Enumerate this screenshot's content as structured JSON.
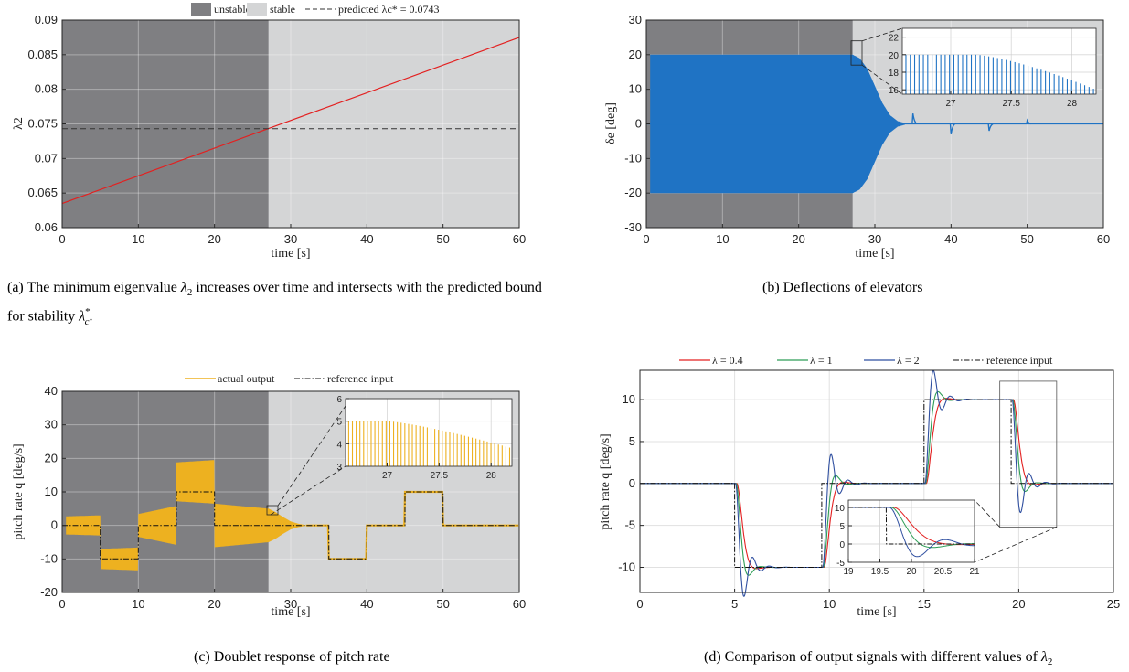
{
  "captions": {
    "a": "(a) The minimum eigenvalue λ2 increases over time and intersects with the predicted bound for stability λc*.",
    "b": "(b) Deflections of elevators",
    "c": "(c) Doublet response of pitch rate",
    "d": "(d) Comparison of output signals with different values of λ2"
  },
  "colors": {
    "unstable": "#7f7f82",
    "stable": "#d4d5d6",
    "red": "#e32020",
    "blue_fill": "#1f73c4",
    "orange": "#edb120",
    "green": "#2f9e57",
    "navy": "#2f4fa0"
  },
  "chart_data": [
    {
      "id": "a",
      "type": "line",
      "xlabel": "time [s]",
      "ylabel": "λ2",
      "xlim": [
        0,
        60
      ],
      "ylim": [
        0.06,
        0.09
      ],
      "xticks": [
        "0",
        "10",
        "20",
        "30",
        "40",
        "50",
        "60"
      ],
      "yticks": [
        "0.06",
        "0.065",
        "0.07",
        "0.075",
        "0.08",
        "0.085",
        "0.09"
      ],
      "regions": [
        {
          "name": "unstable",
          "x": [
            0,
            27.1
          ]
        },
        {
          "name": "stable",
          "x": [
            27.1,
            60
          ]
        }
      ],
      "series": [
        {
          "name": "λ2",
          "x": [
            0,
            60
          ],
          "y": [
            0.0635,
            0.0875
          ]
        },
        {
          "name": "predicted λc* = 0.0743",
          "x": [
            0,
            60
          ],
          "y": [
            0.0743,
            0.0743
          ],
          "style": "dashed"
        }
      ],
      "legend": [
        "unstable",
        "stable",
        "predicted λc* = 0.0743"
      ],
      "legend_position": "top"
    },
    {
      "id": "b",
      "type": "area",
      "xlabel": "time [s]",
      "ylabel": "δe [deg]",
      "xlim": [
        0,
        60
      ],
      "ylim": [
        -30,
        30
      ],
      "xticks": [
        "0",
        "10",
        "20",
        "30",
        "40",
        "50",
        "60"
      ],
      "yticks": [
        "-30",
        "-20",
        "-10",
        "0",
        "10",
        "20",
        "30"
      ],
      "regions": [
        {
          "name": "unstable",
          "x": [
            0,
            27.1
          ]
        },
        {
          "name": "stable",
          "x": [
            27.1,
            60
          ]
        }
      ],
      "envelope": {
        "x": [
          0.5,
          27.1,
          28,
          29,
          30,
          31,
          32,
          33,
          34
        ],
        "amp": [
          20,
          20,
          19,
          16,
          11,
          6,
          2.5,
          0.8,
          0.2
        ]
      },
      "spikes": [
        {
          "x": 35,
          "y": 3
        },
        {
          "x": 40,
          "y": -3
        },
        {
          "x": 45,
          "y": -2
        },
        {
          "x": 50,
          "y": 1
        }
      ],
      "inset": {
        "xlim": [
          26.6,
          28.2
        ],
        "ylim": [
          15.5,
          23
        ],
        "xticks": [
          "27",
          "27.5",
          "28"
        ],
        "yticks": [
          "16",
          "18",
          "20",
          "22"
        ],
        "peak_plateau": 20,
        "decay_start": 27.2,
        "peak_end": 16
      }
    },
    {
      "id": "c",
      "type": "area",
      "xlabel": "time [s]",
      "ylabel": "pitch rate q [deg/s]",
      "xlim": [
        0,
        60
      ],
      "ylim": [
        -20,
        40
      ],
      "xticks": [
        "0",
        "10",
        "20",
        "30",
        "40",
        "50",
        "60"
      ],
      "yticks": [
        "-20",
        "-10",
        "0",
        "10",
        "20",
        "30",
        "40"
      ],
      "regions": [
        {
          "name": "unstable",
          "x": [
            0,
            27.1
          ]
        },
        {
          "name": "stable",
          "x": [
            27.1,
            60
          ]
        }
      ],
      "reference": {
        "x": [
          0,
          5,
          5,
          10,
          10,
          15,
          15,
          20,
          20,
          35,
          35,
          40,
          40,
          45,
          45,
          50,
          50,
          60
        ],
        "y": [
          0,
          0,
          -10,
          -10,
          0,
          0,
          10,
          10,
          0,
          0,
          -10,
          -10,
          0,
          0,
          10,
          10,
          0,
          0
        ]
      },
      "amplitude": {
        "x": [
          0.5,
          5,
          10,
          15,
          20,
          27.1,
          28,
          29,
          30,
          31,
          32
        ],
        "amp": [
          2.7,
          3,
          3.4,
          5.8,
          6.5,
          5,
          4,
          2.5,
          1.2,
          0.5,
          0.1
        ]
      },
      "series": [
        {
          "name": "actual output"
        },
        {
          "name": "reference input"
        }
      ],
      "legend": [
        "actual output",
        "reference input"
      ],
      "legend_position": "top",
      "inset": {
        "xlim": [
          26.6,
          28.2
        ],
        "ylim": [
          3,
          6
        ],
        "xticks": [
          "27",
          "27.5",
          "28"
        ],
        "yticks": [
          "3",
          "4",
          "5",
          "6"
        ],
        "peak_plateau": 5,
        "decay_start": 27.0,
        "peak_end": 3.8
      }
    },
    {
      "id": "d",
      "type": "line",
      "xlabel": "time [s]",
      "ylabel": "pitch rate q [deg/s]",
      "xlim": [
        0,
        25
      ],
      "ylim": [
        -13,
        13.5
      ],
      "xticks": [
        "0",
        "5",
        "10",
        "15",
        "20",
        "25"
      ],
      "yticks": [
        "-10",
        "-5",
        "0",
        "5",
        "10"
      ],
      "reference": {
        "x": [
          0,
          5,
          5,
          9.6,
          9.6,
          15,
          15,
          19.6,
          19.6,
          25
        ],
        "y": [
          0,
          0,
          -10,
          -10,
          0,
          0,
          10,
          10,
          0,
          0
        ]
      },
      "steps": [
        {
          "t": 5,
          "d": -10
        },
        {
          "t": 9.6,
          "d": 10
        },
        {
          "t": 15,
          "d": 10
        },
        {
          "t": 19.6,
          "d": -10
        }
      ],
      "series": [
        {
          "name": "λ = 0.4",
          "wn": 5.0,
          "zeta": 0.8,
          "delay": 0.12
        },
        {
          "name": "λ = 1",
          "wn": 6.0,
          "zeta": 0.6,
          "delay": 0.08
        },
        {
          "name": "λ = 2",
          "wn": 7.5,
          "zeta": 0.32,
          "delay": 0.05
        },
        {
          "name": "reference input"
        }
      ],
      "legend": [
        "λ = 0.4",
        "λ = 1",
        "λ = 2",
        "reference input"
      ],
      "legend_position": "top",
      "inset": {
        "xlim": [
          19,
          21
        ],
        "ylim": [
          -5,
          12
        ],
        "xticks": [
          "19",
          "19.5",
          "20",
          "20.5",
          "21"
        ],
        "yticks": [
          "-5",
          "0",
          "5",
          "10"
        ]
      }
    }
  ]
}
